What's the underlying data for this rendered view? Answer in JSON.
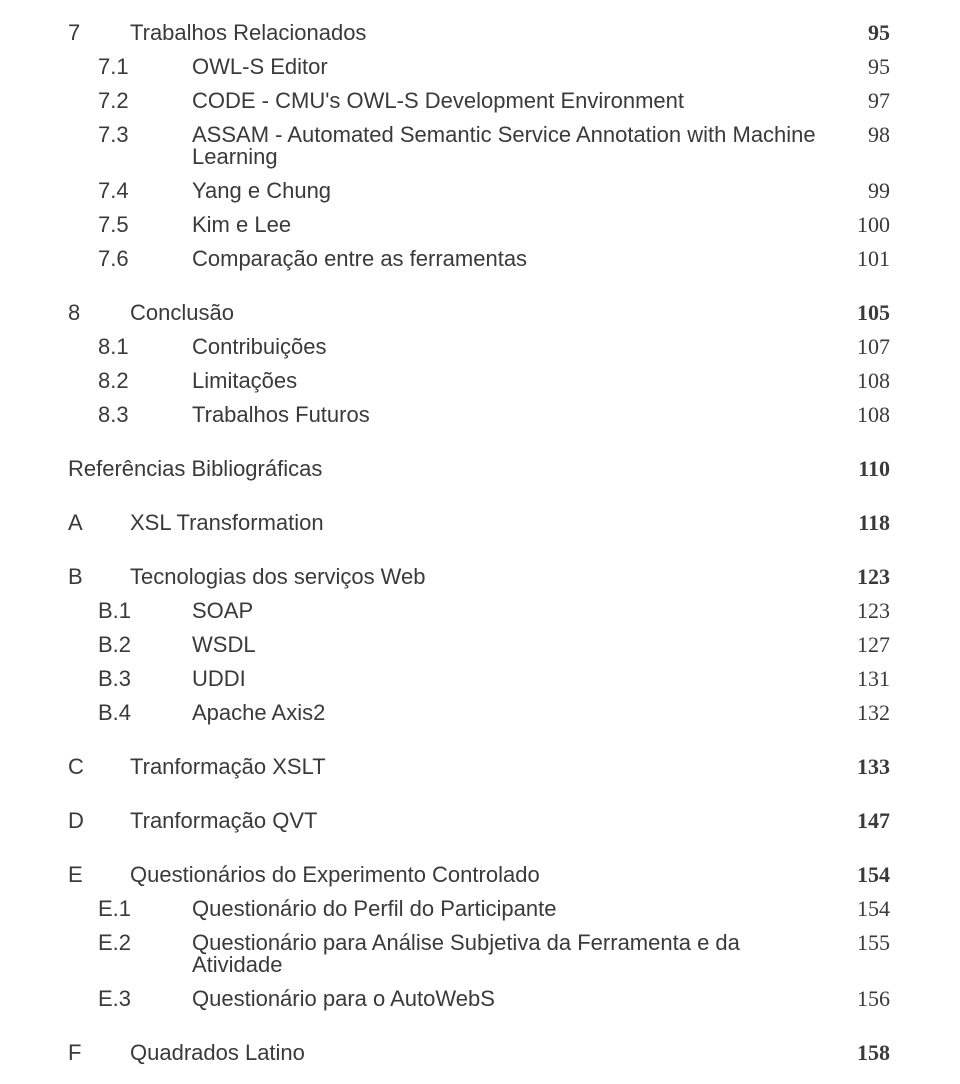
{
  "toc": [
    {
      "kind": "chap",
      "first": true,
      "num": "7",
      "title": "Trabalhos Relacionados",
      "page": "95"
    },
    {
      "kind": "sub",
      "num": "7.1",
      "title": "OWL-S Editor",
      "page": "95"
    },
    {
      "kind": "sub",
      "num": "7.2",
      "title": "CODE - CMU's OWL-S Development Environment",
      "page": "97"
    },
    {
      "kind": "sub",
      "num": "7.3",
      "title": "ASSAM - Automated Semantic Service Annotation with Machine Learning",
      "page": "98"
    },
    {
      "kind": "sub",
      "num": "7.4",
      "title": "Yang e Chung",
      "page": "99"
    },
    {
      "kind": "sub",
      "num": "7.5",
      "title": "Kim e Lee",
      "page": "100"
    },
    {
      "kind": "sub",
      "num": "7.6",
      "title": "Comparação entre as ferramentas",
      "page": "101"
    },
    {
      "kind": "chap",
      "num": "8",
      "title": "Conclusão",
      "page": "105"
    },
    {
      "kind": "sub",
      "num": "8.1",
      "title": "Contribuições",
      "page": "107"
    },
    {
      "kind": "sub",
      "num": "8.2",
      "title": "Limitações",
      "page": "108"
    },
    {
      "kind": "sub",
      "num": "8.3",
      "title": "Trabalhos Futuros",
      "page": "108"
    },
    {
      "kind": "chap-noprefix",
      "title": "Referências Bibliográficas",
      "page": "110"
    },
    {
      "kind": "chap",
      "num": "A",
      "title": "XSL Transformation",
      "page": "118"
    },
    {
      "kind": "chap",
      "num": "B",
      "title": "Tecnologias dos serviços Web",
      "page": "123"
    },
    {
      "kind": "sub",
      "num": "B.1",
      "title": "SOAP",
      "page": "123"
    },
    {
      "kind": "sub",
      "num": "B.2",
      "title": "WSDL",
      "page": "127"
    },
    {
      "kind": "sub",
      "num": "B.3",
      "title": "UDDI",
      "page": "131"
    },
    {
      "kind": "sub",
      "num": "B.4",
      "title": "Apache Axis2",
      "page": "132"
    },
    {
      "kind": "chap",
      "num": "C",
      "title": "Tranformação XSLT",
      "page": "133"
    },
    {
      "kind": "chap",
      "num": "D",
      "title": "Tranformação QVT",
      "page": "147"
    },
    {
      "kind": "chap",
      "num": "E",
      "title": "Questionários do Experimento Controlado",
      "page": "154"
    },
    {
      "kind": "sub",
      "num": "E.1",
      "title": "Questionário do Perfil do Participante",
      "page": "154"
    },
    {
      "kind": "sub",
      "num": "E.2",
      "title": "Questionário para Análise Subjetiva da Ferramenta e da Atividade",
      "page": "155"
    },
    {
      "kind": "sub",
      "num": "E.3",
      "title": "Questionário para o AutoWebS",
      "page": "156"
    },
    {
      "kind": "chap",
      "num": "F",
      "title": "Quadrados Latino",
      "page": "158"
    }
  ]
}
